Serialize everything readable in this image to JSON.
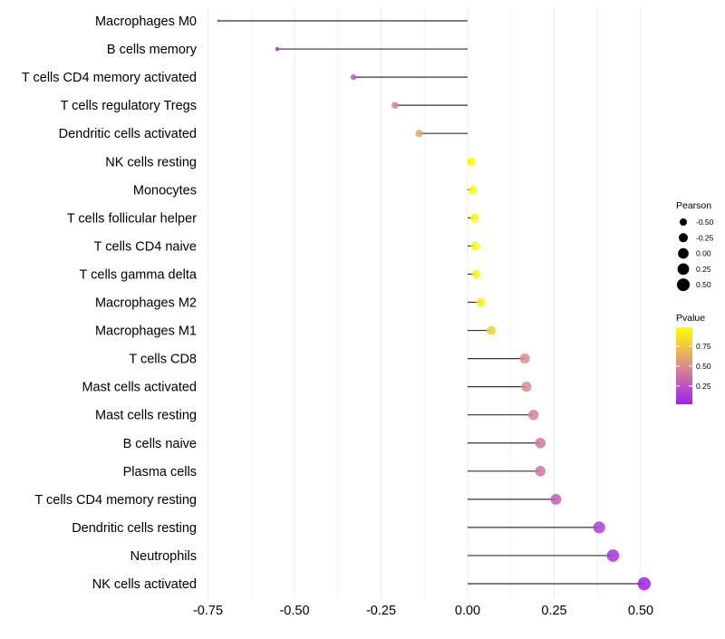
{
  "chart_data": {
    "type": "lollipop",
    "orientation": "horizontal",
    "xlabel": "",
    "ylabel": "",
    "xlim": [
      -0.8,
      0.52
    ],
    "xticks": [
      -0.75,
      -0.5,
      -0.25,
      0.0,
      0.25,
      0.5
    ],
    "xtick_labels": [
      "-0.75",
      "-0.50",
      "-0.25",
      "0.00",
      "0.25",
      "0.50"
    ],
    "grid": true,
    "legend_position": "right",
    "categories": [
      "Macrophages M0",
      "B cells memory",
      "T cells CD4 memory activated",
      "T cells regulatory  Tregs",
      "Dendritic cells activated",
      "NK cells resting",
      "Monocytes",
      "T cells follicular helper",
      "T cells CD4 naive",
      "T cells gamma delta",
      "Macrophages M2",
      "Macrophages M1",
      "T cells CD8",
      "Mast cells activated",
      "Mast cells resting",
      "B cells naive",
      "Plasma cells",
      "T cells CD4 memory resting",
      "Dendritic cells resting",
      "Neutrophils",
      "NK cells activated"
    ],
    "pearson": [
      -0.72,
      -0.55,
      -0.33,
      -0.21,
      -0.14,
      0.01,
      0.015,
      0.02,
      0.022,
      0.025,
      0.038,
      0.068,
      0.165,
      0.17,
      0.19,
      0.21,
      0.21,
      0.255,
      0.38,
      0.42,
      0.51
    ],
    "pvalue": [
      0.03,
      0.05,
      0.3,
      0.45,
      0.6,
      0.99,
      0.98,
      0.97,
      0.97,
      0.96,
      0.93,
      0.8,
      0.5,
      0.5,
      0.45,
      0.4,
      0.4,
      0.3,
      0.15,
      0.1,
      0.02
    ],
    "size_legend": {
      "title": "Pearson",
      "labels": [
        "-0.50",
        "-0.25",
        "0.00",
        "0.25",
        "0.50"
      ],
      "values": [
        -0.5,
        -0.25,
        0.0,
        0.25,
        0.5
      ]
    },
    "color_legend": {
      "title": "Pvalue",
      "labels": [
        "0.75",
        "0.50",
        "0.25"
      ],
      "values": [
        0.75,
        0.5,
        0.25
      ],
      "range": [
        0.02,
        0.99
      ],
      "low_color": "#a020f0",
      "mid_color": "#dc8c8c",
      "high_color": "#ffff00"
    },
    "colors": {
      "stem": "#333333",
      "grid": "#ebebeb",
      "background": "#ffffff"
    }
  }
}
